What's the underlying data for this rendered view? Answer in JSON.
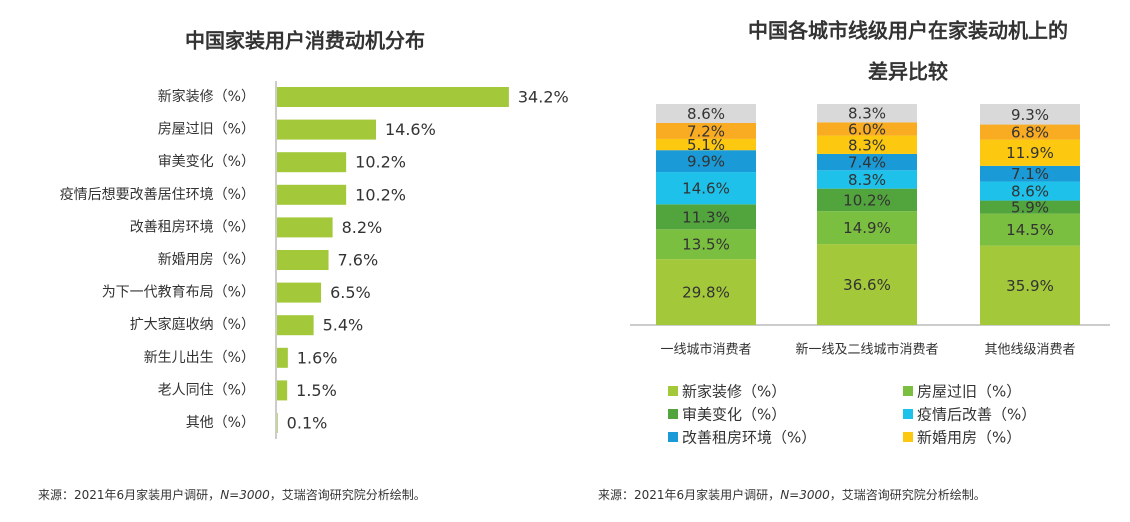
{
  "chart_data": [
    {
      "type": "hbar",
      "title": "中国家装用户消费动机分布",
      "categories": [
        "新家装修（%）",
        "房屋过旧（%）",
        "审美变化（%）",
        "疫情后想要改善居住环境（%）",
        "改善租房环境（%）",
        "新婚用房（%）",
        "为下一代教育布局（%）",
        "扩大家庭收纳（%）",
        "新生儿出生（%）",
        "老人同住（%）",
        "其他（%）"
      ],
      "values": [
        34.2,
        14.6,
        10.2,
        10.2,
        8.2,
        7.6,
        6.5,
        5.4,
        1.6,
        1.5,
        0.1
      ],
      "value_labels": [
        "34.2%",
        "14.6%",
        "10.2%",
        "10.2%",
        "8.2%",
        "7.6%",
        "6.5%",
        "5.4%",
        "1.6%",
        "1.5%",
        "0.1%"
      ],
      "color": "#a3c83a",
      "source": [
        "来源：2021年6月家装用户调研，",
        "N=3000",
        "，艾瑞咨询研究院分析绘制。"
      ]
    },
    {
      "type": "stacked-bar",
      "title": [
        "中国各城市线级用户在家装动机上的",
        "差异比较"
      ],
      "categories": [
        "一线城市消费者",
        "新一线及二线城市消费者",
        "其他线级消费者"
      ],
      "series": [
        {
          "name": "新家装修（%）",
          "color": "#a3c83a",
          "values": [
            29.8,
            36.6,
            35.9
          ],
          "value_labels": [
            "29.8%",
            "36.6%",
            "35.9%"
          ]
        },
        {
          "name": "房屋过旧（%）",
          "color": "#7bbf40",
          "values": [
            13.5,
            14.9,
            14.5
          ],
          "value_labels": [
            "13.5%",
            "14.9%",
            "14.5%"
          ]
        },
        {
          "name": "审美变化（%）",
          "color": "#52a43d",
          "values": [
            11.3,
            10.2,
            5.9
          ],
          "value_labels": [
            "11.3%",
            "10.2%",
            "5.9%"
          ]
        },
        {
          "name": "疫情后改善（%）",
          "color": "#1dc1ea",
          "values": [
            14.6,
            8.3,
            8.6
          ],
          "value_labels": [
            "14.6%",
            "8.3%",
            "8.6%"
          ]
        },
        {
          "name": "改善租房环境（%）",
          "color": "#1a9ad6",
          "values": [
            9.9,
            7.4,
            7.1
          ],
          "value_labels": [
            "9.9%",
            "7.4%",
            "7.1%"
          ]
        },
        {
          "name": "新婚用房（%）",
          "color": "#fcc910",
          "values": [
            5.1,
            8.3,
            11.9
          ],
          "value_labels": [
            "5.1%",
            "8.3%",
            "11.9%"
          ]
        },
        {
          "color": "#f9ab22",
          "values": [
            7.2,
            6.0,
            6.8
          ],
          "value_labels": [
            "7.2%",
            "6.0%",
            "6.8%"
          ]
        },
        {
          "color": "#d9d9d9",
          "values": [
            8.6,
            8.3,
            9.3
          ],
          "value_labels": [
            "8.6%",
            "8.3%",
            "9.3%"
          ]
        }
      ],
      "source": [
        "来源：2021年6月家装用户调研，",
        "N=3000",
        "，艾瑞咨询研究院分析绘制。"
      ]
    }
  ]
}
